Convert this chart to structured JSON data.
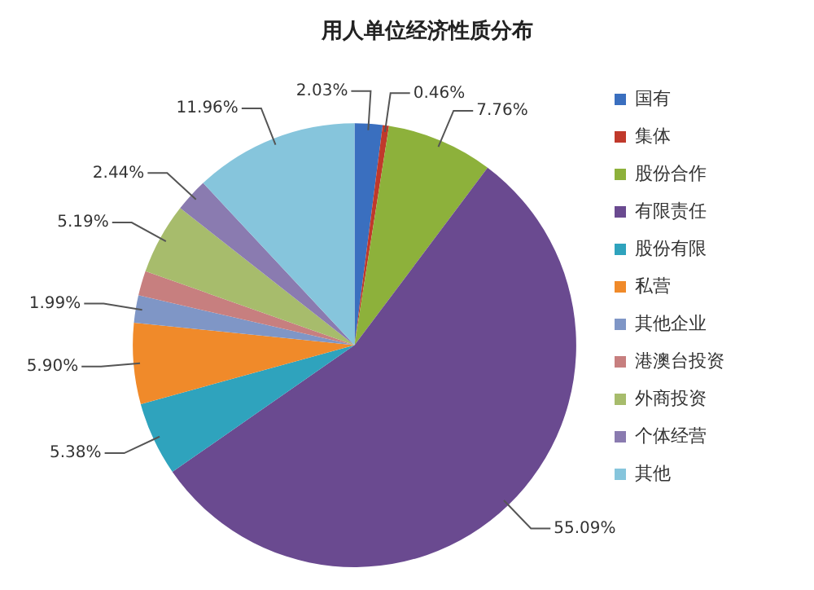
{
  "chart_data": {
    "type": "pie",
    "title": "用人单位经济性质分布",
    "categories": [
      "国有",
      "集体",
      "股份合作",
      "有限责任",
      "股份有限",
      "私营",
      "其他企业",
      "港澳台投资",
      "外商投资",
      "个体经营",
      "其他"
    ],
    "values": [
      2.03,
      0.46,
      7.76,
      55.09,
      5.38,
      5.9,
      1.99,
      1.8,
      5.19,
      2.44,
      11.96
    ],
    "value_labels": [
      "2.03%",
      "0.46%",
      "7.76%",
      "55.09%",
      "5.38%",
      "5.90%",
      "1.99%",
      null,
      "5.19%",
      "2.44%",
      "11.96%"
    ],
    "colors": [
      "#3a6fbf",
      "#c0392b",
      "#8db13b",
      "#6a4a90",
      "#2fa3bd",
      "#f08a2a",
      "#7f96c6",
      "#c77f7f",
      "#a7bc6c",
      "#8a7bb0",
      "#86c5dc"
    ],
    "legend": "right"
  }
}
